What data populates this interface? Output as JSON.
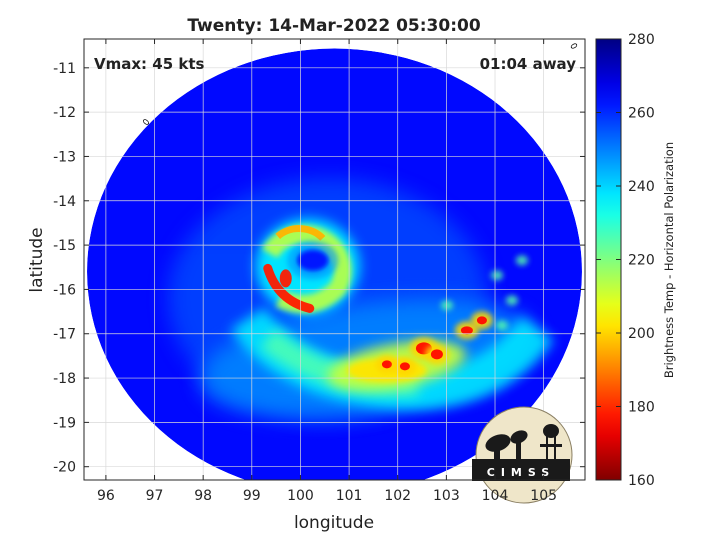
{
  "chart_data": {
    "type": "heatmap",
    "title": "Twenty: 14-Mar-2022 05:30:00",
    "xlabel": "longitude",
    "ylabel": "latitude",
    "xlim": [
      95.55,
      105.85
    ],
    "ylim": [
      -20.3,
      -10.35
    ],
    "x_ticks": [
      96,
      97,
      98,
      99,
      100,
      101,
      102,
      103,
      104,
      105
    ],
    "y_ticks": [
      -11,
      -12,
      -13,
      -14,
      -15,
      -16,
      -17,
      -18,
      -19,
      -20
    ],
    "grid": true,
    "annotations": {
      "vmax": "Vmax: 45 kts",
      "away": "01:04 away"
    },
    "colorbar": {
      "label": "Brightness Temp - Horizontal Polarization",
      "range": [
        160,
        280
      ],
      "ticks": [
        280,
        260,
        240,
        220,
        200,
        180,
        160
      ],
      "colormap": "jet"
    },
    "storm": {
      "eye_center": [
        100.15,
        -15.3
      ],
      "swath_center": [
        100.7,
        -15.6
      ],
      "swath_radius_deg": 5.3,
      "background_temp": 264,
      "eye_temp": 252,
      "eyewall_min_temp": 178,
      "rainband_min_temp": 176,
      "rainband_center": [
        102.6,
        -17.6
      ]
    },
    "logo": {
      "text": "CIMSS"
    }
  }
}
